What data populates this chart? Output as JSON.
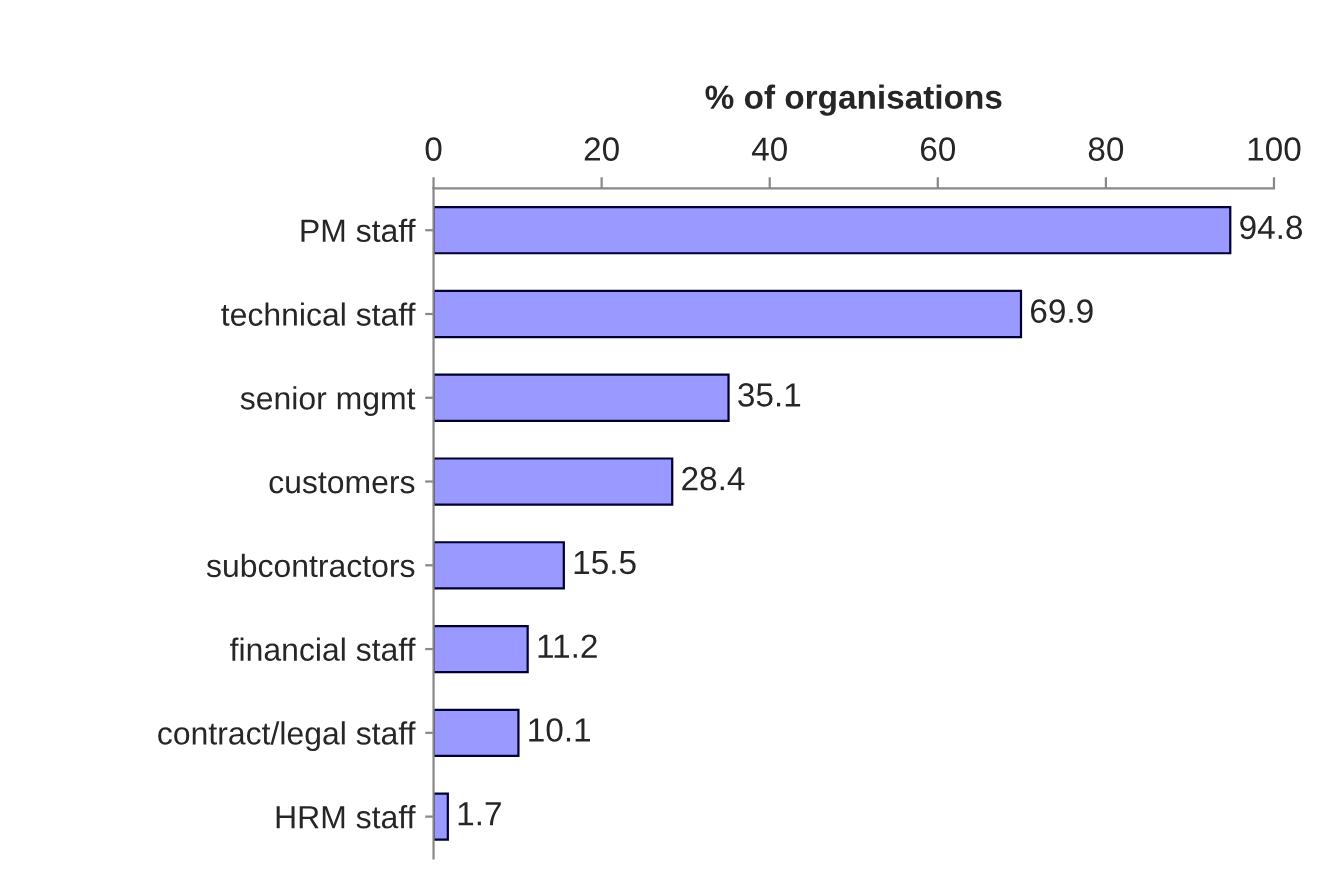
{
  "chart_data": {
    "type": "bar",
    "orientation": "horizontal",
    "xlabel": "% of organisations",
    "categories": [
      "PM staff",
      "technical staff",
      "senior mgmt",
      "customers",
      "subcontractors",
      "financial staff",
      "contract/legal staff",
      "HRM staff"
    ],
    "values": [
      94.8,
      69.9,
      35.1,
      28.4,
      15.5,
      11.2,
      10.1,
      1.7
    ],
    "color": "#9999ff",
    "xlim": [
      0,
      100
    ],
    "xticks": [
      0,
      20,
      40,
      60,
      80,
      100
    ],
    "data_labels": true,
    "grid": false,
    "legend": false
  }
}
